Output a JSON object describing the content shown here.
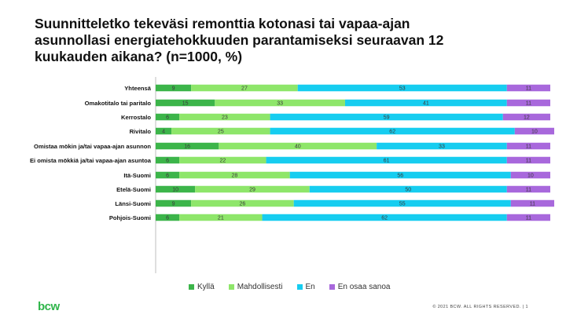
{
  "title": "Suunnitteletko tekeväsi remonttia kotonasi tai vapaa-ajan\nasunnollasi energiatehokkuuden parantamiseksi seuraavan 12\nkuukauden aikana? (n=1000, %)",
  "logo_text": "bcw",
  "copyright": "© 2021 BCW. ALL RIGHTS RESERVED. | 1",
  "colors": {
    "Kyllä": "#3cb54a",
    "Mahdollisesti": "#8ee66a",
    "En": "#16cdf0",
    "En osaa sanoa": "#a868dc"
  },
  "chart_data": {
    "type": "bar",
    "orientation": "horizontal",
    "stacked": true,
    "xlim": [
      0,
      100
    ],
    "legend_position": "bottom",
    "categories": [
      "Yhteensä",
      "Omakotitalo tai paritalo",
      "Kerrostalo",
      "Rivitalo",
      "Omistaa mökin ja/tai vapaa-ajan asunnon",
      "Ei omista mökkiä ja/tai vapaa-ajan asuntoa",
      "Itä-Suomi",
      "Etelä-Suomi",
      "Länsi-Suomi",
      "Pohjois-Suomi"
    ],
    "groups": [
      [
        0
      ],
      [
        1,
        2,
        3
      ],
      [
        4,
        5
      ],
      [
        6,
        7,
        8,
        9
      ]
    ],
    "series": [
      {
        "name": "Kyllä",
        "values": [
          9,
          15,
          6,
          4,
          16,
          6,
          6,
          10,
          9,
          6
        ]
      },
      {
        "name": "Mahdollisesti",
        "values": [
          27,
          33,
          23,
          25,
          40,
          22,
          28,
          29,
          26,
          21
        ]
      },
      {
        "name": "En",
        "values": [
          53,
          41,
          59,
          62,
          33,
          61,
          56,
          50,
          55,
          62
        ]
      },
      {
        "name": "En osaa sanoa",
        "values": [
          11,
          11,
          12,
          10,
          11,
          11,
          10,
          11,
          11,
          11
        ]
      }
    ]
  }
}
